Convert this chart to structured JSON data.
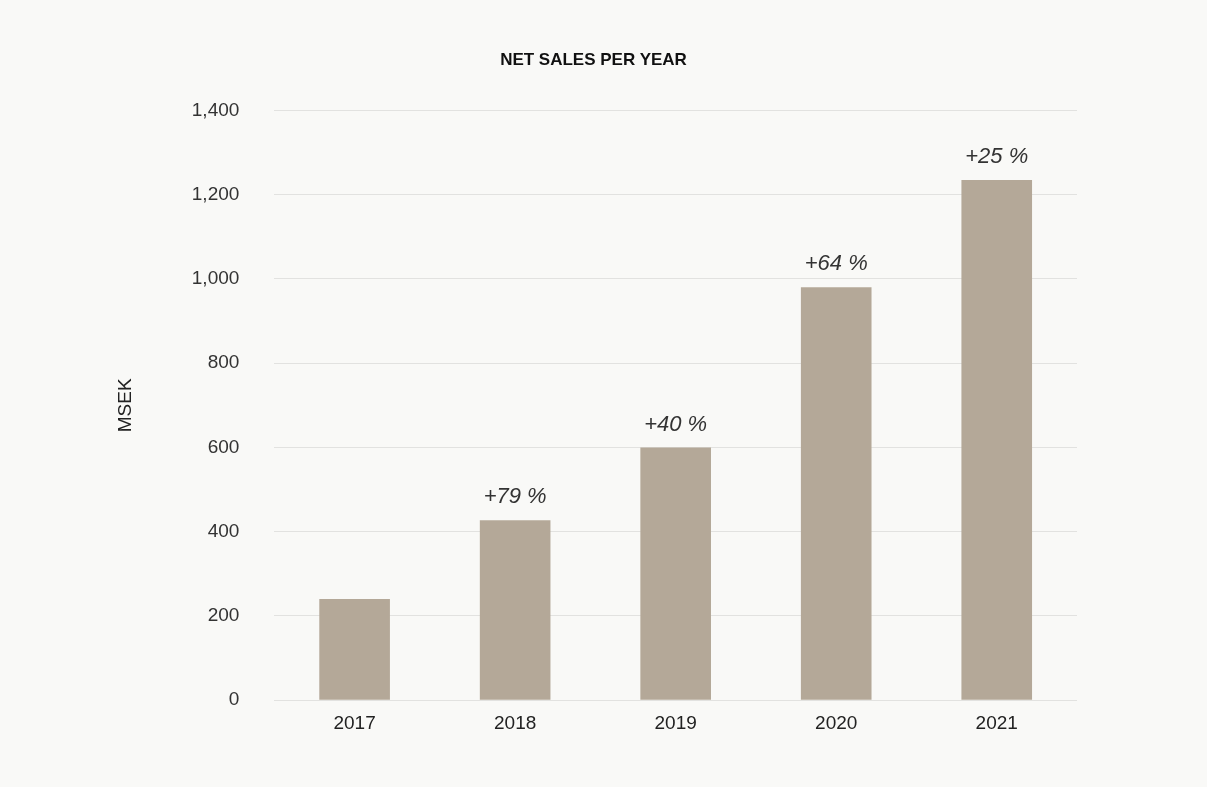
{
  "chart_data": {
    "type": "bar",
    "title": "NET SALES PER YEAR",
    "ylabel": "MSEK",
    "categories": [
      "2017",
      "2018",
      "2019",
      "2020",
      "2021"
    ],
    "values": [
      240,
      427,
      600,
      980,
      1235
    ],
    "annotations": [
      {
        "text": "+79 %",
        "x": "2018",
        "y": 427
      },
      {
        "text": "+40 %",
        "x": "2019",
        "y": 600
      },
      {
        "text": "+64 %",
        "x": "2020",
        "y": 980
      },
      {
        "text": "+25 %",
        "x": "2021",
        "y": 1235
      }
    ],
    "color": "#b4a898",
    "ylim": [
      0,
      1400
    ],
    "yticks": [
      0,
      200,
      400,
      600,
      800,
      {
        "value": 1000,
        "label": "1,000"
      },
      {
        "value": 1200,
        "label": "1,200"
      },
      {
        "value": 1400,
        "label": "1,400"
      }
    ],
    "grid": "y",
    "legend": false
  }
}
